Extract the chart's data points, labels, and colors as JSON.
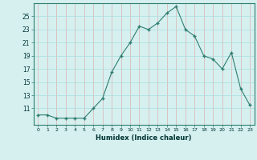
{
  "x": [
    0,
    1,
    2,
    3,
    4,
    5,
    6,
    7,
    8,
    9,
    10,
    11,
    12,
    13,
    14,
    15,
    16,
    17,
    18,
    19,
    20,
    21,
    22,
    23
  ],
  "y": [
    10.0,
    10.0,
    9.5,
    9.5,
    9.5,
    9.5,
    11.0,
    12.5,
    16.5,
    19.0,
    21.0,
    23.5,
    23.0,
    24.0,
    25.5,
    26.5,
    23.0,
    22.0,
    19.0,
    18.5,
    17.0,
    19.5,
    14.0,
    11.5
  ],
  "xlabel": "Humidex (Indice chaleur)",
  "bg_color": "#d6f0f0",
  "line_color": "#2e7d6e",
  "marker_color": "#2e7d6e",
  "grid_color": "#c8e8e8",
  "grid_color_minor": "#f0c8c8",
  "tick_labels": [
    "0",
    "1",
    "2",
    "3",
    "4",
    "5",
    "6",
    "7",
    "8",
    "9",
    "10",
    "11",
    "12",
    "13",
    "14",
    "15",
    "16",
    "17",
    "18",
    "19",
    "20",
    "21",
    "22",
    "23"
  ],
  "yticks": [
    11,
    13,
    15,
    17,
    19,
    21,
    23,
    25
  ],
  "ylim": [
    8.5,
    27.0
  ],
  "xlim": [
    -0.5,
    23.5
  ]
}
